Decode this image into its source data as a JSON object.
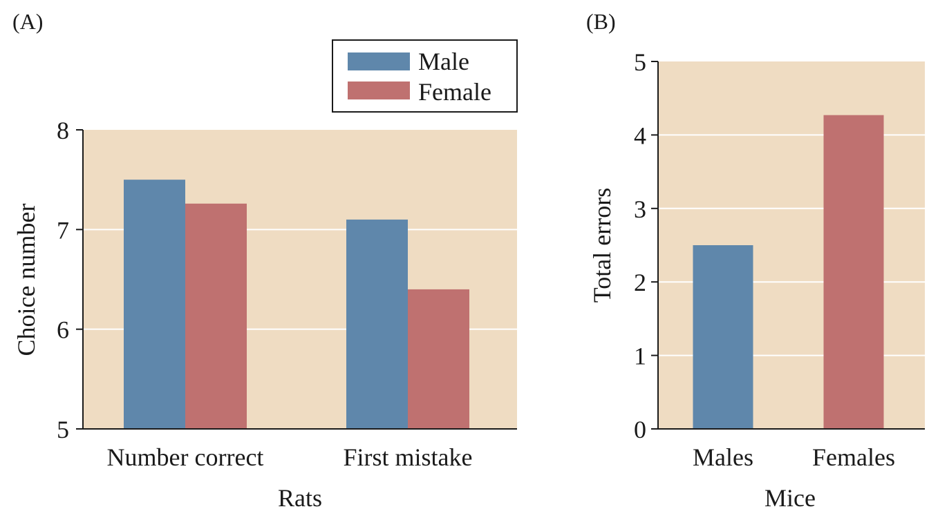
{
  "colors": {
    "male": "#5f87ab",
    "female": "#bf7170",
    "plot_background": "#efdcc2"
  },
  "chart_data": [
    {
      "panel": "(A)",
      "type": "bar",
      "title": "",
      "categories": [
        "Number correct",
        "First mistake"
      ],
      "series": [
        {
          "name": "Male",
          "values": [
            7.5,
            7.1
          ]
        },
        {
          "name": "Female",
          "values": [
            7.26,
            6.4
          ]
        }
      ],
      "xlabel": "Rats",
      "ylabel": "Choice number",
      "ylim": [
        5,
        8
      ],
      "yticks": [
        5,
        6,
        7,
        8
      ],
      "grid": true,
      "legend_position": "top-right, above plot"
    },
    {
      "panel": "(B)",
      "type": "bar",
      "title": "",
      "categories": [
        "Males",
        "Females"
      ],
      "series": [
        {
          "name": "Total errors",
          "values": [
            2.5,
            4.27
          ]
        }
      ],
      "bar_colors": [
        "male",
        "female"
      ],
      "xlabel": "Mice",
      "ylabel": "Total errors",
      "ylim": [
        0,
        5
      ],
      "yticks": [
        0,
        1,
        2,
        3,
        4,
        5
      ],
      "grid": true
    }
  ]
}
